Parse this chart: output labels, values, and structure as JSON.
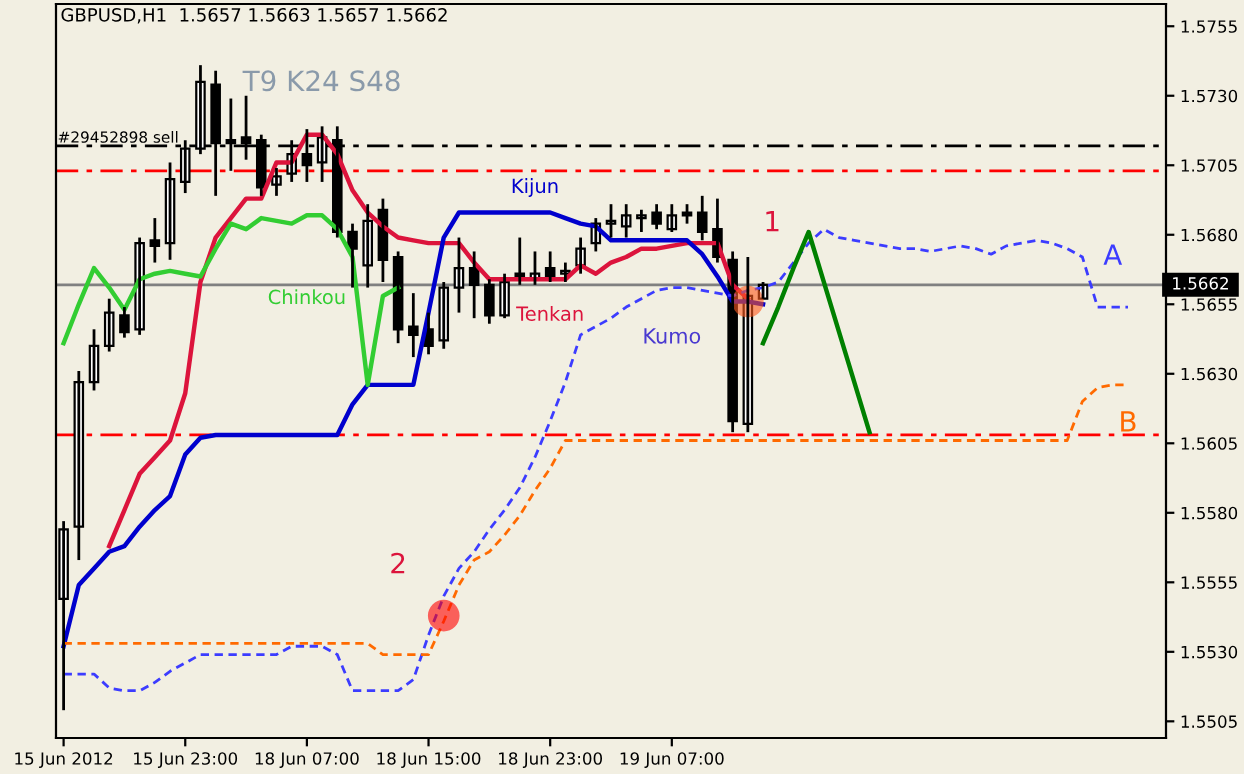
{
  "chart_data": {
    "type": "candlestick",
    "title": "GBPUSD,H1  1.5657 1.5663 1.5657 1.5662",
    "categories": [
      "15 Jun 2012",
      null,
      null,
      null,
      null,
      null,
      null,
      null,
      "15 Jun 23:00",
      null,
      null,
      null,
      null,
      null,
      null,
      null,
      "18 Jun 07:00",
      null,
      null,
      null,
      null,
      null,
      null,
      null,
      "18 Jun 15:00",
      null,
      null,
      null,
      null,
      null,
      null,
      null,
      "18 Jun 23:00",
      null,
      null,
      null,
      null,
      null,
      null,
      null,
      "19 Jun 07:00",
      null,
      null,
      null,
      null,
      null,
      null,
      null,
      null,
      null,
      null,
      null,
      null,
      null,
      null,
      null,
      null,
      null,
      null,
      null,
      null,
      null,
      null,
      null,
      null,
      null,
      null,
      null,
      null,
      null,
      null,
      null,
      null
    ],
    "ohlc": [
      [
        1.5549,
        1.5577,
        1.5509,
        1.5574
      ],
      [
        1.5575,
        1.5631,
        1.5563,
        1.5627
      ],
      [
        1.5627,
        1.5646,
        1.5624,
        1.564
      ],
      [
        1.564,
        1.5657,
        1.5638,
        1.5652
      ],
      [
        1.5651,
        1.5654,
        1.5643,
        1.5645
      ],
      [
        1.5646,
        1.5679,
        1.5644,
        1.5677
      ],
      [
        1.5678,
        1.5686,
        1.567,
        1.5676
      ],
      [
        1.5677,
        1.5706,
        1.5671,
        1.57
      ],
      [
        1.5699,
        1.5714,
        1.5695,
        1.5711
      ],
      [
        1.5711,
        1.5741,
        1.5709,
        1.5735
      ],
      [
        1.5734,
        1.5739,
        1.5694,
        1.5713
      ],
      [
        1.5714,
        1.5729,
        1.5703,
        1.5713
      ],
      [
        1.5715,
        1.573,
        1.5707,
        1.5713
      ],
      [
        1.5714,
        1.5716,
        1.5694,
        1.5697
      ],
      [
        1.5698,
        1.5704,
        1.5694,
        1.5701
      ],
      [
        1.5702,
        1.5714,
        1.5699,
        1.5709
      ],
      [
        1.5709,
        1.5718,
        1.5699,
        1.5705
      ],
      [
        1.5706,
        1.5719,
        1.5699,
        1.5715
      ],
      [
        1.5714,
        1.5719,
        1.5679,
        1.5681
      ],
      [
        1.5681,
        1.5684,
        1.5661,
        1.5675
      ],
      [
        1.5669,
        1.5691,
        1.5661,
        1.5685
      ],
      [
        1.5689,
        1.5693,
        1.5663,
        1.5671
      ],
      [
        1.5672,
        1.5674,
        1.5641,
        1.5646
      ],
      [
        1.5647,
        1.5659,
        1.5636,
        1.5644
      ],
      [
        1.5646,
        1.5652,
        1.5637,
        1.564
      ],
      [
        1.5642,
        1.5663,
        1.5639,
        1.5661
      ],
      [
        1.5661,
        1.5679,
        1.5652,
        1.5668
      ],
      [
        1.5668,
        1.5674,
        1.565,
        1.5662
      ],
      [
        1.5662,
        1.5664,
        1.5648,
        1.5651
      ],
      [
        1.5651,
        1.5666,
        1.565,
        1.5663
      ],
      [
        1.5666,
        1.5679,
        1.5662,
        1.5664
      ],
      [
        1.5664,
        1.5674,
        1.5662,
        1.5666
      ],
      [
        1.5668,
        1.5674,
        1.5663,
        1.5665
      ],
      [
        1.5666,
        1.567,
        1.5663,
        1.5667
      ],
      [
        1.5669,
        1.5679,
        1.5666,
        1.5675
      ],
      [
        1.5677,
        1.5686,
        1.5674,
        1.5684
      ],
      [
        1.5684,
        1.5691,
        1.5679,
        1.5685
      ],
      [
        1.5683,
        1.5691,
        1.5679,
        1.5687
      ],
      [
        1.5686,
        1.5689,
        1.5681,
        1.5687
      ],
      [
        1.5688,
        1.5691,
        1.5682,
        1.5684
      ],
      [
        1.5682,
        1.5691,
        1.5681,
        1.5687
      ],
      [
        1.5688,
        1.5691,
        1.5684,
        1.5687
      ],
      [
        1.5688,
        1.5694,
        1.5678,
        1.5681
      ],
      [
        1.5682,
        1.5693,
        1.567,
        1.5672
      ],
      [
        1.5671,
        1.5674,
        1.5609,
        1.5613
      ],
      [
        1.5612,
        1.5672,
        1.5609,
        1.5658
      ],
      [
        1.5657,
        1.5663,
        1.5657,
        1.5662
      ],
      null,
      null,
      null,
      null,
      null,
      null,
      null,
      null,
      null,
      null,
      null,
      null,
      null,
      null,
      null,
      null,
      null,
      null,
      null,
      null,
      null,
      null,
      null,
      null,
      null,
      null
    ],
    "series": [
      {
        "name": "Tenkan",
        "type": "line",
        "color": "#dc143c",
        "values": [
          null,
          null,
          null,
          1.5568,
          1.5581,
          1.5594,
          1.56,
          1.5606,
          1.5623,
          1.5663,
          1.5679,
          1.5686,
          1.5693,
          1.5693,
          1.5706,
          1.5706,
          1.5716,
          1.5716,
          1.5709,
          1.5696,
          1.5688,
          1.5683,
          1.5679,
          1.5678,
          1.5677,
          1.5677,
          1.5677,
          1.567,
          1.5664,
          1.5664,
          1.5664,
          1.5664,
          1.5664,
          1.5664,
          1.5669,
          1.5666,
          1.567,
          1.5672,
          1.5675,
          1.5675,
          1.5676,
          1.5677,
          1.5677,
          1.5677,
          1.5662,
          1.5657,
          null,
          null,
          null,
          null,
          null,
          null,
          null,
          null,
          null,
          null,
          null,
          null,
          null,
          null,
          null,
          null,
          null,
          null,
          null,
          null,
          null,
          null,
          null,
          null,
          null,
          null,
          null
        ]
      },
      {
        "name": "Kijun",
        "type": "line",
        "color": "#0000cd",
        "values": [
          1.5532,
          1.5554,
          1.556,
          1.5566,
          1.5568,
          1.5575,
          1.5581,
          1.5586,
          1.5601,
          1.5607,
          1.5608,
          1.5608,
          1.5608,
          1.5608,
          1.5608,
          1.5608,
          1.5608,
          1.5608,
          1.5608,
          1.5619,
          1.5626,
          1.5626,
          1.5626,
          1.5626,
          1.5652,
          1.5679,
          1.5688,
          1.5688,
          1.5688,
          1.5688,
          1.5688,
          1.5688,
          1.5688,
          1.5686,
          1.5684,
          1.5683,
          1.5678,
          1.5678,
          1.5678,
          1.5678,
          1.5678,
          1.5678,
          1.5673,
          1.5665,
          1.5656,
          1.5656,
          1.5655,
          null,
          null,
          null,
          null,
          null,
          null,
          null,
          null,
          null,
          null,
          null,
          null,
          null,
          null,
          null,
          null,
          null,
          null,
          null,
          null,
          null,
          null,
          null,
          null,
          null,
          null
        ]
      },
      {
        "name": "Chinkou",
        "type": "line",
        "color": "#32cd32",
        "values": [
          1.5641,
          1.5655,
          1.5668,
          1.5661,
          1.5653,
          1.5664,
          1.5666,
          1.5667,
          1.5666,
          1.5665,
          1.5675,
          1.5684,
          1.5682,
          1.5686,
          1.5685,
          1.5684,
          1.5687,
          1.5687,
          1.5682,
          1.5672,
          1.5626,
          1.5658,
          1.5661,
          null,
          null,
          null,
          null,
          null,
          null,
          null,
          null,
          null,
          null,
          null,
          null,
          null,
          null,
          null,
          null,
          null,
          null,
          null,
          null,
          null,
          null,
          null,
          null,
          null,
          null,
          null,
          null,
          null,
          null,
          null,
          null,
          null,
          null,
          null,
          null,
          null,
          null,
          null,
          null,
          null,
          null,
          null,
          null,
          null,
          null,
          null,
          null,
          null,
          null
        ]
      },
      {
        "name": "A",
        "type": "line",
        "color": "#3c3cff",
        "line_style": "dashed",
        "values": [
          1.5522,
          1.5522,
          1.5522,
          1.5517,
          1.5516,
          1.5516,
          1.5519,
          1.5523,
          1.5526,
          1.5529,
          1.5529,
          1.5529,
          1.5529,
          1.5529,
          1.5529,
          1.5532,
          1.5532,
          1.5532,
          1.5529,
          1.5516,
          1.5516,
          1.5516,
          1.5516,
          1.552,
          1.5536,
          1.555,
          1.556,
          1.5566,
          1.5574,
          1.5581,
          1.5589,
          1.56,
          1.5613,
          1.5627,
          1.5644,
          1.5647,
          1.565,
          1.5654,
          1.5657,
          1.566,
          1.5661,
          1.5661,
          1.566,
          1.5659,
          1.5658,
          1.566,
          1.5661,
          1.5663,
          1.567,
          1.5677,
          1.5682,
          1.5679,
          1.5678,
          1.5677,
          1.5676,
          1.5675,
          1.5675,
          1.5674,
          1.5675,
          1.5676,
          1.5675,
          1.5673,
          1.5676,
          1.5677,
          1.5678,
          1.5677,
          1.5675,
          1.5672,
          1.5654,
          1.5654,
          1.5654,
          null,
          null
        ]
      },
      {
        "name": "B",
        "type": "line",
        "color": "#ff6a00",
        "line_style": "dashed",
        "values": [
          1.5533,
          1.5533,
          1.5533,
          1.5533,
          1.5533,
          1.5533,
          1.5533,
          1.5533,
          1.5533,
          1.5533,
          1.5533,
          1.5533,
          1.5533,
          1.5533,
          1.5533,
          1.5533,
          1.5533,
          1.5533,
          1.5533,
          1.5533,
          1.5533,
          1.5529,
          1.5529,
          1.5529,
          1.5529,
          1.5541,
          1.5554,
          1.5563,
          1.5566,
          1.5572,
          1.5579,
          1.5588,
          1.5596,
          1.5606,
          1.5606,
          1.5606,
          1.5606,
          1.5606,
          1.5606,
          1.5606,
          1.5606,
          1.5606,
          1.5606,
          1.5606,
          1.5606,
          1.5606,
          1.5606,
          1.5606,
          1.5606,
          1.5606,
          1.5606,
          1.5606,
          1.5606,
          1.5606,
          1.5606,
          1.5606,
          1.5606,
          1.5606,
          1.5606,
          1.5606,
          1.5606,
          1.5606,
          1.5606,
          1.5606,
          1.5606,
          1.5606,
          1.5606,
          1.562,
          1.5625,
          1.5626,
          1.5626,
          null,
          null
        ]
      },
      {
        "type": "line",
        "color": "#008000",
        "values": [
          null,
          null,
          null,
          null,
          null,
          null,
          null,
          null,
          null,
          null,
          null,
          null,
          null,
          null,
          null,
          null,
          null,
          null,
          null,
          null,
          null,
          null,
          null,
          null,
          null,
          null,
          null,
          null,
          null,
          null,
          null,
          null,
          null,
          null,
          null,
          null,
          null,
          null,
          null,
          null,
          null,
          null,
          null,
          null,
          null,
          null,
          1.5641,
          1.5654,
          1.5668,
          1.5681,
          1.5663,
          1.5645,
          1.5627,
          1.5609,
          null,
          null,
          null,
          null,
          null,
          null,
          null,
          null,
          null,
          null,
          null,
          null,
          null,
          null,
          null,
          null,
          null,
          null,
          null
        ]
      },
      {
        "type": "scatter",
        "marker": "circle",
        "color": "#ff5a1e",
        "values": [
          null,
          null,
          null,
          null,
          null,
          null,
          null,
          null,
          null,
          null,
          null,
          null,
          null,
          null,
          null,
          null,
          null,
          null,
          null,
          null,
          null,
          null,
          null,
          null,
          null,
          null,
          null,
          null,
          null,
          null,
          null,
          null,
          null,
          null,
          null,
          null,
          null,
          null,
          null,
          null,
          null,
          null,
          null,
          null,
          null,
          1.5656,
          null,
          null,
          null,
          null,
          null,
          null,
          null,
          null,
          null,
          null,
          null,
          null,
          null,
          null,
          null,
          null,
          null,
          null,
          null,
          null,
          null,
          null,
          null,
          null,
          null,
          null,
          null
        ]
      },
      {
        "type": "scatter",
        "marker": "circle",
        "color": "#ff0000",
        "values": [
          null,
          null,
          null,
          null,
          null,
          null,
          null,
          null,
          null,
          null,
          null,
          null,
          null,
          null,
          null,
          null,
          null,
          null,
          null,
          null,
          null,
          null,
          null,
          null,
          null,
          1.5543,
          null,
          null,
          null,
          null,
          null,
          null,
          null,
          null,
          null,
          null,
          null,
          null,
          null,
          null,
          null,
          null,
          null,
          null,
          null,
          null,
          null,
          null,
          null,
          null,
          null,
          null,
          null,
          null,
          null,
          null,
          null,
          null,
          null,
          null,
          null,
          null,
          null,
          null,
          null,
          null,
          null,
          null,
          null,
          null,
          null,
          null,
          null
        ]
      }
    ],
    "ref_lines": [
      {
        "axis": "y",
        "value": 1.5712,
        "label": "#29452898 sell",
        "color": "#000000",
        "line_style": "dashed"
      },
      {
        "axis": "y",
        "value": 1.5703,
        "color": "#ff0000",
        "line_style": "dashed"
      },
      {
        "axis": "y",
        "value": 1.5608,
        "color": "#ff0000",
        "line_style": "dashed"
      },
      {
        "axis": "y",
        "value": 1.5662,
        "label": "1.5662",
        "color": "#808080",
        "line_style": "solid"
      }
    ],
    "annotations": [
      "T9 K24 S48",
      "Kumo",
      "1",
      "2"
    ],
    "ylim": [
      1.5499,
      1.5763
    ],
    "yticks": [
      1.5755,
      {
        "value": 1.573,
        "label": "1.5730"
      },
      1.5705,
      {
        "value": 1.568,
        "label": "1.5680"
      },
      1.5655,
      {
        "value": 1.563,
        "label": "1.5630"
      },
      1.5605,
      {
        "value": 1.558,
        "label": "1.5580"
      },
      1.5555,
      {
        "value": 1.553,
        "label": "1.5530"
      },
      1.5505
    ]
  }
}
